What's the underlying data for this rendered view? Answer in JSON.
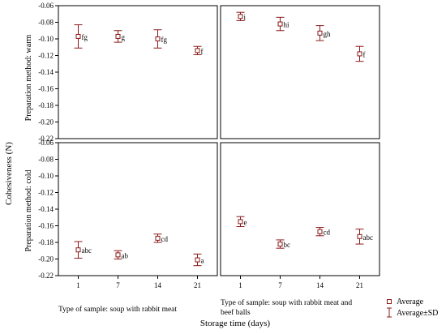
{
  "figure": {
    "y_axis_title": "Cohesiveness (N)",
    "x_axis_title": "Storage time (days)",
    "row_labels": [
      "Preparation method: warm",
      "Preparation method: cold"
    ],
    "col_labels": [
      [
        "Type of sample: soup with rabbit meat"
      ],
      [
        "Type of sample: soup with rabbit meat and",
        "beef balls"
      ]
    ],
    "legend": {
      "average": "Average",
      "average_sd": "Average±SD"
    }
  },
  "colors": {
    "marker": "#8b1a1a",
    "frame": "#000000",
    "background": "#ffffff"
  },
  "chart_data": {
    "type": "scatter",
    "x_categories": [
      "1",
      "7",
      "14",
      "21"
    ],
    "ylim": [
      -0.22,
      -0.06
    ],
    "y_ticks": [
      "-0.06",
      "-0.08",
      "-0.10",
      "-0.12",
      "-0.14",
      "-0.16",
      "-0.18",
      "-0.20",
      "-0.22"
    ],
    "panels": [
      {
        "row": 0,
        "col": 0,
        "points": [
          {
            "x": "1",
            "mean": -0.097,
            "sd": 0.014,
            "label": "fg"
          },
          {
            "x": "7",
            "mean": -0.097,
            "sd": 0.007,
            "label": "g"
          },
          {
            "x": "14",
            "mean": -0.1,
            "sd": 0.011,
            "label": "fg"
          },
          {
            "x": "21",
            "mean": -0.114,
            "sd": 0.005,
            "label": "f"
          }
        ]
      },
      {
        "row": 0,
        "col": 1,
        "points": [
          {
            "x": "1",
            "mean": -0.073,
            "sd": 0.005,
            "label": "i"
          },
          {
            "x": "7",
            "mean": -0.082,
            "sd": 0.008,
            "label": "hi"
          },
          {
            "x": "14",
            "mean": -0.093,
            "sd": 0.009,
            "label": "gh"
          },
          {
            "x": "21",
            "mean": -0.118,
            "sd": 0.009,
            "label": "f"
          }
        ]
      },
      {
        "row": 1,
        "col": 0,
        "points": [
          {
            "x": "1",
            "mean": -0.189,
            "sd": 0.01,
            "label": "abc"
          },
          {
            "x": "7",
            "mean": -0.195,
            "sd": 0.005,
            "label": "ab"
          },
          {
            "x": "14",
            "mean": -0.175,
            "sd": 0.005,
            "label": "cd"
          },
          {
            "x": "21",
            "mean": -0.201,
            "sd": 0.007,
            "label": "a"
          }
        ]
      },
      {
        "row": 1,
        "col": 1,
        "points": [
          {
            "x": "1",
            "mean": -0.155,
            "sd": 0.006,
            "label": "e"
          },
          {
            "x": "7",
            "mean": -0.182,
            "sd": 0.005,
            "label": "bc"
          },
          {
            "x": "14",
            "mean": -0.167,
            "sd": 0.005,
            "label": "cd"
          },
          {
            "x": "21",
            "mean": -0.173,
            "sd": 0.009,
            "label": "abc"
          }
        ]
      }
    ]
  }
}
